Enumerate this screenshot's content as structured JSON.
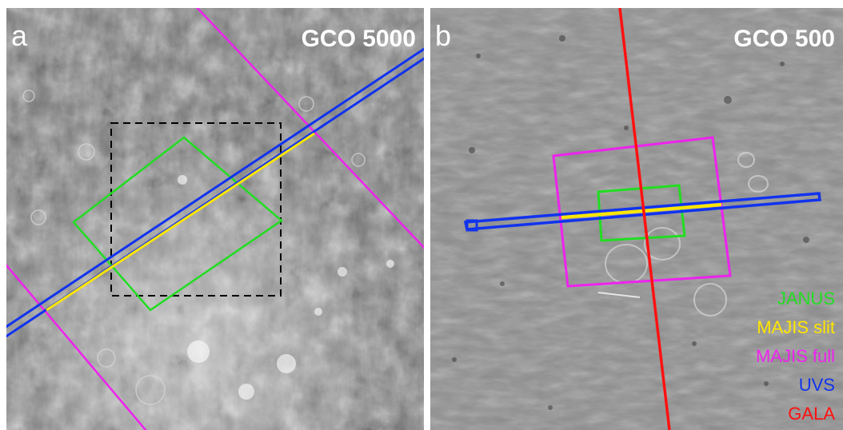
{
  "panel_a": {
    "letter": "a",
    "orbit_label": "GCO 5000"
  },
  "panel_b": {
    "letter": "b",
    "orbit_label": "GCO 500"
  },
  "legend": [
    {
      "label": "JANUS",
      "color": "#22dd22"
    },
    {
      "label": "MAJIS slit",
      "color": "#ffe600"
    },
    {
      "label": "MAJIS full",
      "color": "#ee22ee"
    },
    {
      "label": "UVS",
      "color": "#1133ee"
    },
    {
      "label": "GALA",
      "color": "#ff1111"
    }
  ],
  "colors": {
    "janus": "#22dd22",
    "majis_slit": "#ffe600",
    "majis_full": "#ee22ee",
    "uvs": "#1133ee",
    "gala": "#ff1111",
    "terrain_a": "#7a7a7a",
    "terrain_b": "#8a8a8a"
  }
}
